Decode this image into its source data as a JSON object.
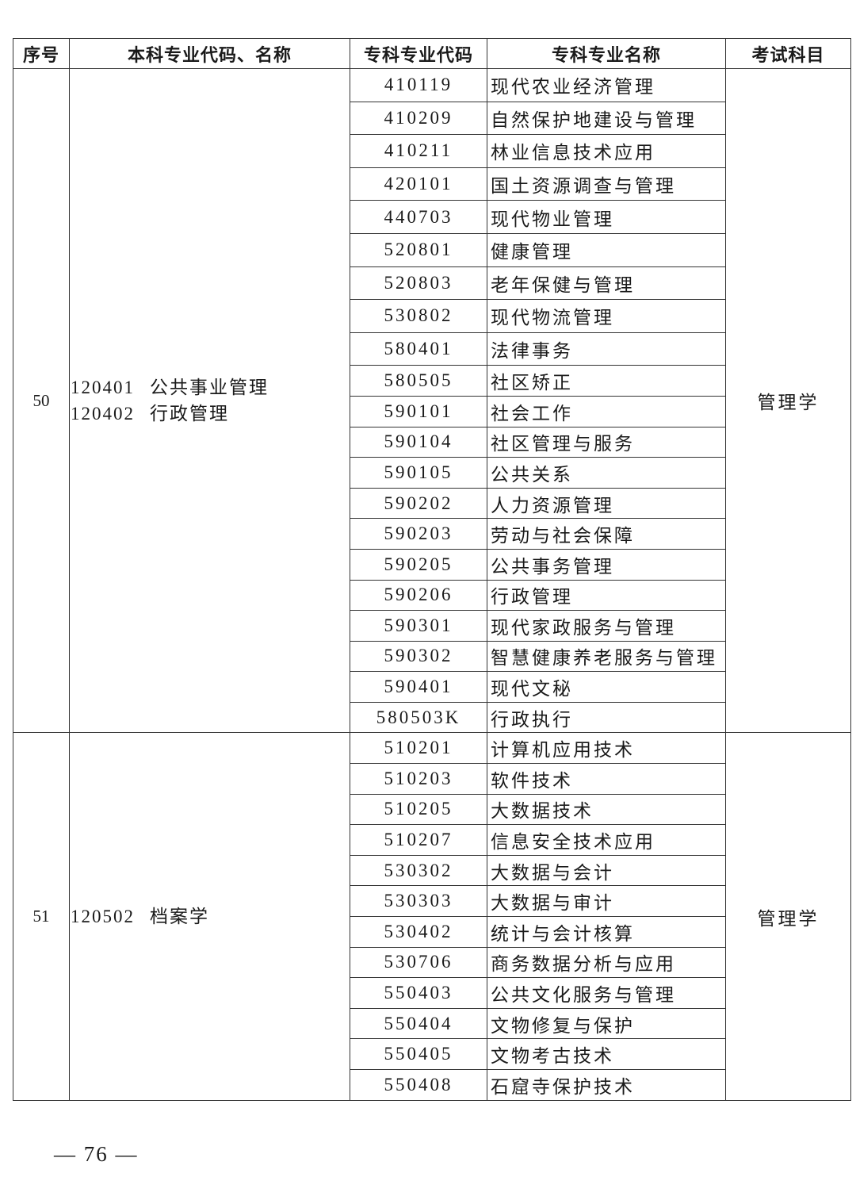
{
  "header": [
    "序号",
    "本科专业代码、名称",
    "专科专业代码",
    "专科专业名称",
    "考试科目"
  ],
  "groups": [
    {
      "seq": "50",
      "majors": [
        {
          "code": "120401",
          "name": "公共事业管理"
        },
        {
          "code": "120402",
          "name": "行政管理"
        }
      ],
      "subject": "管理学",
      "rows": [
        {
          "code": "410119",
          "name": "现代农业经济管理"
        },
        {
          "code": "410209",
          "name": "自然保护地建设与管理"
        },
        {
          "code": "410211",
          "name": "林业信息技术应用"
        },
        {
          "code": "420101",
          "name": "国土资源调查与管理"
        },
        {
          "code": "440703",
          "name": "现代物业管理"
        },
        {
          "code": "520801",
          "name": "健康管理"
        },
        {
          "code": "520803",
          "name": "老年保健与管理"
        },
        {
          "code": "530802",
          "name": "现代物流管理"
        },
        {
          "code": "580401",
          "name": "法律事务"
        },
        {
          "code": "580505",
          "name": "社区矫正"
        },
        {
          "code": "590101",
          "name": "社会工作"
        },
        {
          "code": "590104",
          "name": "社区管理与服务"
        },
        {
          "code": "590105",
          "name": "公共关系"
        },
        {
          "code": "590202",
          "name": "人力资源管理"
        },
        {
          "code": "590203",
          "name": "劳动与社会保障"
        },
        {
          "code": "590205",
          "name": "公共事务管理"
        },
        {
          "code": "590206",
          "name": "行政管理"
        },
        {
          "code": "590301",
          "name": "现代家政服务与管理"
        },
        {
          "code": "590302",
          "name": "智慧健康养老服务与管理"
        },
        {
          "code": "590401",
          "name": "现代文秘"
        },
        {
          "code": "580503K",
          "name": "行政执行"
        }
      ]
    },
    {
      "seq": "51",
      "majors": [
        {
          "code": "120502",
          "name": "档案学"
        }
      ],
      "subject": "管理学",
      "rows": [
        {
          "code": "510201",
          "name": "计算机应用技术"
        },
        {
          "code": "510203",
          "name": "软件技术"
        },
        {
          "code": "510205",
          "name": "大数据技术"
        },
        {
          "code": "510207",
          "name": "信息安全技术应用"
        },
        {
          "code": "530302",
          "name": "大数据与会计"
        },
        {
          "code": "530303",
          "name": "大数据与审计"
        },
        {
          "code": "530402",
          "name": "统计与会计核算"
        },
        {
          "code": "530706",
          "name": "商务数据分析与应用"
        },
        {
          "code": "550403",
          "name": "公共文化服务与管理"
        },
        {
          "code": "550404",
          "name": "文物修复与保护"
        },
        {
          "code": "550405",
          "name": "文物考古技术"
        },
        {
          "code": "550408",
          "name": "石窟寺保护技术"
        }
      ]
    }
  ],
  "footer": {
    "page_number": "— 76 —"
  }
}
